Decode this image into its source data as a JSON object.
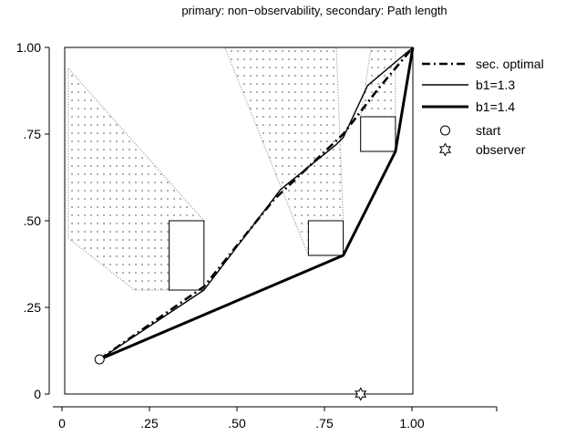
{
  "chart_data": {
    "type": "line",
    "title": "primary: non−observability,   secondary: Path length",
    "xlabel": "",
    "ylabel": "",
    "xlim": [
      0,
      1
    ],
    "ylim": [
      0,
      1
    ],
    "x_ticks": [
      {
        "value": 0,
        "label": "0"
      },
      {
        "value": 0.25,
        "label": ".25"
      },
      {
        "value": 0.5,
        "label": ".50"
      },
      {
        "value": 0.75,
        "label": ".75"
      },
      {
        "value": 1.0,
        "label": "1.00"
      }
    ],
    "y_ticks": [
      {
        "value": 0,
        "label": "0"
      },
      {
        "value": 0.25,
        "label": ".25"
      },
      {
        "value": 0.5,
        "label": ".50"
      },
      {
        "value": 0.75,
        "label": ".75"
      },
      {
        "value": 1.0,
        "label": "1.00"
      }
    ],
    "grid": false,
    "legend_position": "right, outside plot",
    "obstacles": [
      {
        "x": [
          0.3,
          0.4
        ],
        "y": [
          0.3,
          0.5
        ]
      },
      {
        "x": [
          0.7,
          0.8
        ],
        "y": [
          0.4,
          0.5
        ]
      },
      {
        "x": [
          0.85,
          0.95
        ],
        "y": [
          0.7,
          0.8
        ]
      }
    ],
    "shadow_regions": [
      [
        [
          0.4,
          0.5
        ],
        [
          0.3,
          0.5
        ],
        [
          0.3,
          0.3
        ],
        [
          0.2,
          0.3
        ],
        [
          0.01,
          0.45
        ],
        [
          0.01,
          0.94
        ]
      ],
      [
        [
          0.7,
          0.4
        ],
        [
          0.8,
          0.4
        ],
        [
          0.8,
          0.5
        ],
        [
          0.78,
          1.0
        ],
        [
          0.46,
          1.0
        ]
      ],
      [
        [
          0.85,
          0.7
        ],
        [
          0.85,
          0.8
        ],
        [
          0.88,
          1.0
        ],
        [
          0.95,
          1.0
        ],
        [
          0.95,
          0.7
        ]
      ]
    ],
    "series": [
      {
        "name": "sec. optimal",
        "style": "dash-dot",
        "width": 2.6,
        "points": [
          [
            0.1,
            0.1
          ],
          [
            0.4,
            0.31
          ],
          [
            0.6,
            0.56
          ],
          [
            0.8,
            0.75
          ],
          [
            0.9,
            0.88
          ],
          [
            1.0,
            1.0
          ]
        ]
      },
      {
        "name": "b1=1.3",
        "style": "solid",
        "width": 1.4,
        "points": [
          [
            0.1,
            0.1
          ],
          [
            0.4,
            0.3
          ],
          [
            0.62,
            0.59
          ],
          [
            0.78,
            0.72
          ],
          [
            0.8,
            0.74
          ],
          [
            0.87,
            0.89
          ],
          [
            1.0,
            1.0
          ]
        ]
      },
      {
        "name": "b1=1.4",
        "style": "solid",
        "width": 3,
        "points": [
          [
            0.1,
            0.1
          ],
          [
            0.8,
            0.4
          ],
          [
            0.95,
            0.7
          ],
          [
            1.0,
            1.0
          ]
        ]
      }
    ],
    "markers": [
      {
        "name": "start",
        "symbol": "circle",
        "x": 0.1,
        "y": 0.1
      },
      {
        "name": "observer",
        "symbol": "star",
        "x": 0.85,
        "y": 0.0
      }
    ]
  }
}
